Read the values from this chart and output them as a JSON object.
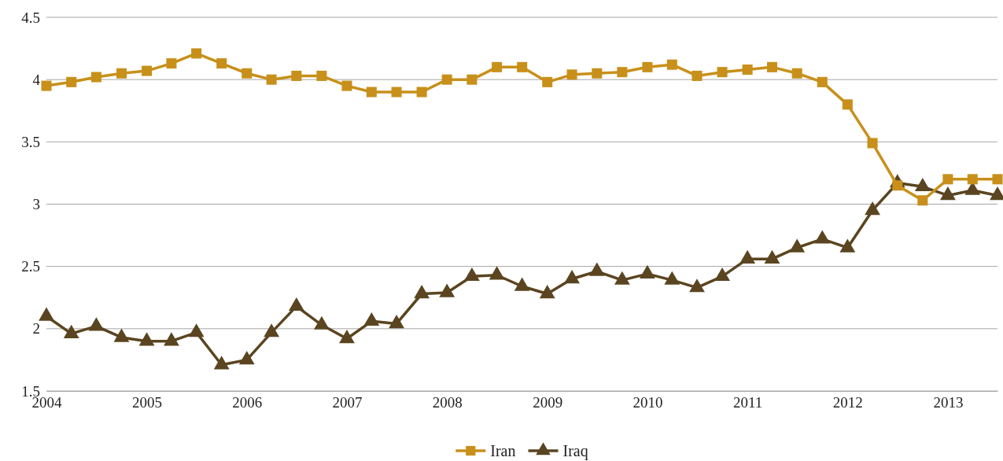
{
  "chart_data": {
    "type": "line",
    "x": [
      "2004-01",
      "2004-04",
      "2004-07",
      "2004-10",
      "2005-01",
      "2005-04",
      "2005-07",
      "2005-10",
      "2006-01",
      "2006-04",
      "2006-07",
      "2006-10",
      "2007-01",
      "2007-04",
      "2007-07",
      "2007-10",
      "2008-01",
      "2008-04",
      "2008-07",
      "2008-10",
      "2009-01",
      "2009-04",
      "2009-07",
      "2009-10",
      "2010-01",
      "2010-04",
      "2010-07",
      "2010-10",
      "2011-01",
      "2011-04",
      "2011-07",
      "2011-10",
      "2012-01",
      "2012-04",
      "2012-07",
      "2012-10",
      "2013-01",
      "2013-04",
      "2013-07"
    ],
    "series": [
      {
        "name": "Iran",
        "color": "#c8901a",
        "marker": "square",
        "values": [
          3.95,
          3.98,
          4.02,
          4.05,
          4.07,
          4.13,
          4.21,
          4.13,
          4.05,
          4.0,
          4.03,
          4.03,
          3.95,
          3.9,
          3.9,
          3.9,
          4.0,
          4.0,
          4.1,
          4.1,
          3.98,
          4.04,
          4.05,
          4.06,
          4.1,
          4.12,
          4.03,
          4.06,
          4.08,
          4.1,
          4.05,
          3.98,
          3.8,
          3.49,
          3.15,
          3.03,
          3.2,
          3.2,
          3.2
        ]
      },
      {
        "name": "Iraq",
        "color": "#5a4520",
        "marker": "triangle",
        "values": [
          2.1,
          1.96,
          2.02,
          1.93,
          1.9,
          1.9,
          1.97,
          1.71,
          1.75,
          1.97,
          2.18,
          2.03,
          1.92,
          2.06,
          2.04,
          2.28,
          2.29,
          2.42,
          2.43,
          2.34,
          2.28,
          2.4,
          2.46,
          2.39,
          2.44,
          2.39,
          2.33,
          2.42,
          2.56,
          2.56,
          2.65,
          2.72,
          2.65,
          2.95,
          3.17,
          3.14,
          3.07,
          3.11,
          3.07
        ]
      }
    ],
    "xlim": [
      "2004-01",
      "2013-07"
    ],
    "xticks": [
      {
        "value": "2004-01",
        "label": "2004"
      },
      {
        "value": "2005-01",
        "label": "2005"
      },
      {
        "value": "2006-01",
        "label": "2006"
      },
      {
        "value": "2007-01",
        "label": "2007"
      },
      {
        "value": "2008-01",
        "label": "2008"
      },
      {
        "value": "2009-01",
        "label": "2009"
      },
      {
        "value": "2010-01",
        "label": "2010"
      },
      {
        "value": "2011-01",
        "label": "2011"
      },
      {
        "value": "2012-01",
        "label": "2012"
      },
      {
        "value": "2013-01",
        "label": "2013"
      }
    ],
    "ylim": [
      1.5,
      4.5
    ],
    "yticks": [
      1.5,
      2,
      2.5,
      3,
      3.5,
      4,
      4.5
    ],
    "grid": "y",
    "legend": "bottom"
  }
}
